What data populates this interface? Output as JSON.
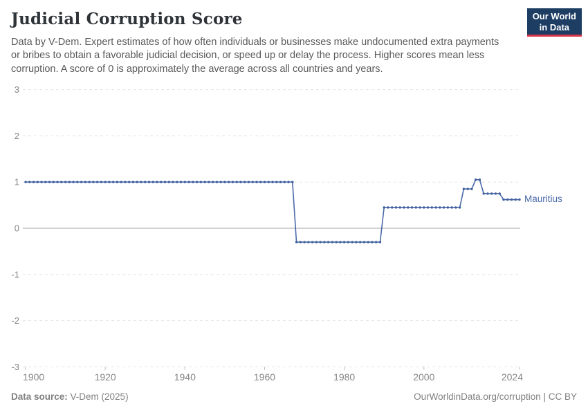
{
  "header": {
    "title": "Judicial Corruption Score",
    "subtitle_lines": [
      "Data by V-Dem. Expert estimates of how often individuals or businesses make undocumented extra payments",
      "or bribes to obtain a favorable judicial decision, or speed up or delay the process. Higher scores mean less",
      "corruption. A score of 0 is approximately the average across all countries and years."
    ],
    "logo": {
      "line1": "Our World",
      "line2": "in Data",
      "bg_color": "#1d3d63",
      "bar_color": "#d8354a"
    }
  },
  "footer": {
    "data_source_label": "Data source:",
    "data_source_value": " V-Dem (2025)",
    "attribution": "OurWorldinData.org/corruption | CC BY"
  },
  "chart_data": {
    "type": "line",
    "title": "Judicial Corruption Score",
    "xlabel": "",
    "ylabel": "",
    "xlim": [
      1900,
      2024
    ],
    "ylim": [
      -3,
      3
    ],
    "x_ticks": [
      1900,
      1920,
      1940,
      1960,
      1980,
      2000,
      2024
    ],
    "y_ticks": [
      3,
      2,
      1,
      0,
      -1,
      -2,
      -3
    ],
    "grid": "horizontal dashed gridlines, solid line at 0",
    "legend_position": "label at end of line",
    "colors": {
      "line": "#4a69a8",
      "marker": "#3f5f9e",
      "gridline": "#e2e2e2",
      "zero_line": "#a3a3a3",
      "axis_text": "#868686"
    },
    "series": [
      {
        "name": "Mauritius",
        "color": "#4a69a8",
        "marker_color": "#3f5f9e",
        "step_segments": [
          {
            "start_year": 1900,
            "end_year": 1967,
            "value": 1.0
          },
          {
            "start_year": 1968,
            "end_year": 1989,
            "value": -0.3
          },
          {
            "start_year": 1990,
            "end_year": 2009,
            "value": 0.45
          },
          {
            "start_year": 2010,
            "end_year": 2012,
            "value": 0.85
          },
          {
            "start_year": 2013,
            "end_year": 2014,
            "value": 1.05
          },
          {
            "start_year": 2015,
            "end_year": 2019,
            "value": 0.75
          },
          {
            "start_year": 2020,
            "end_year": 2024,
            "value": 0.62
          }
        ]
      }
    ]
  }
}
